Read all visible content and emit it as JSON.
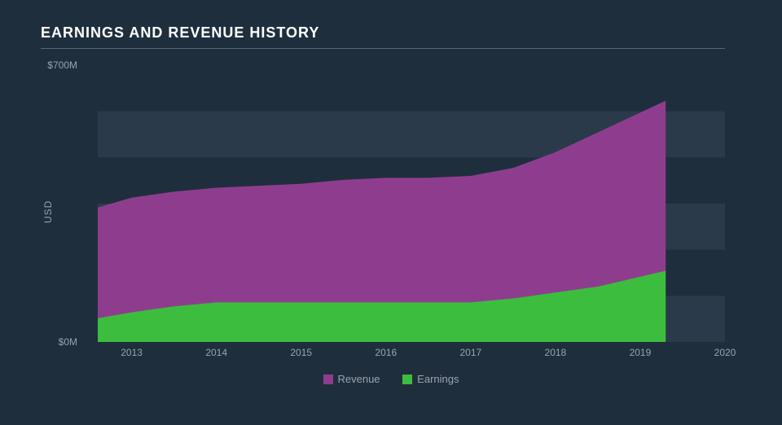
{
  "chart": {
    "type": "area",
    "title": "EARNINGS AND REVENUE HISTORY",
    "title_fontsize": 18,
    "background_color": "#1f2e3d",
    "plot_band_color": "#2a3a4a",
    "text_color": "#9aa3ad",
    "title_color": "#ffffff",
    "ylabel": "USD",
    "label_fontsize": 12,
    "ylim": [
      0,
      700
    ],
    "yticks": [
      {
        "value": 0,
        "label": "$0M"
      },
      {
        "value": 700,
        "label": "$700M"
      }
    ],
    "xlim": [
      2012.6,
      2020
    ],
    "xticks": [
      2013,
      2014,
      2015,
      2016,
      2017,
      2018,
      2019,
      2020
    ],
    "series": [
      {
        "name": "Revenue",
        "color": "#8e3d8e",
        "x": [
          2012.6,
          2013,
          2013.5,
          2014,
          2014.5,
          2015,
          2015.5,
          2016,
          2016.5,
          2017,
          2017.5,
          2018,
          2018.5,
          2019,
          2019.3
        ],
        "y": [
          340,
          365,
          380,
          390,
          395,
          400,
          410,
          415,
          415,
          420,
          440,
          480,
          530,
          580,
          610
        ]
      },
      {
        "name": "Earnings",
        "color": "#3dbd3d",
        "x": [
          2012.6,
          2013,
          2013.5,
          2014,
          2014.5,
          2015,
          2015.5,
          2016,
          2016.5,
          2017,
          2017.5,
          2018,
          2018.5,
          2019,
          2019.3
        ],
        "y": [
          60,
          75,
          90,
          100,
          100,
          100,
          100,
          100,
          100,
          100,
          110,
          125,
          140,
          165,
          180
        ]
      }
    ],
    "legend": {
      "position": "bottom",
      "items": [
        {
          "label": "Revenue",
          "color": "#8e3d8e"
        },
        {
          "label": "Earnings",
          "color": "#3dbd3d"
        }
      ]
    },
    "grid_bands": true,
    "divider_color": "#5a6570"
  }
}
